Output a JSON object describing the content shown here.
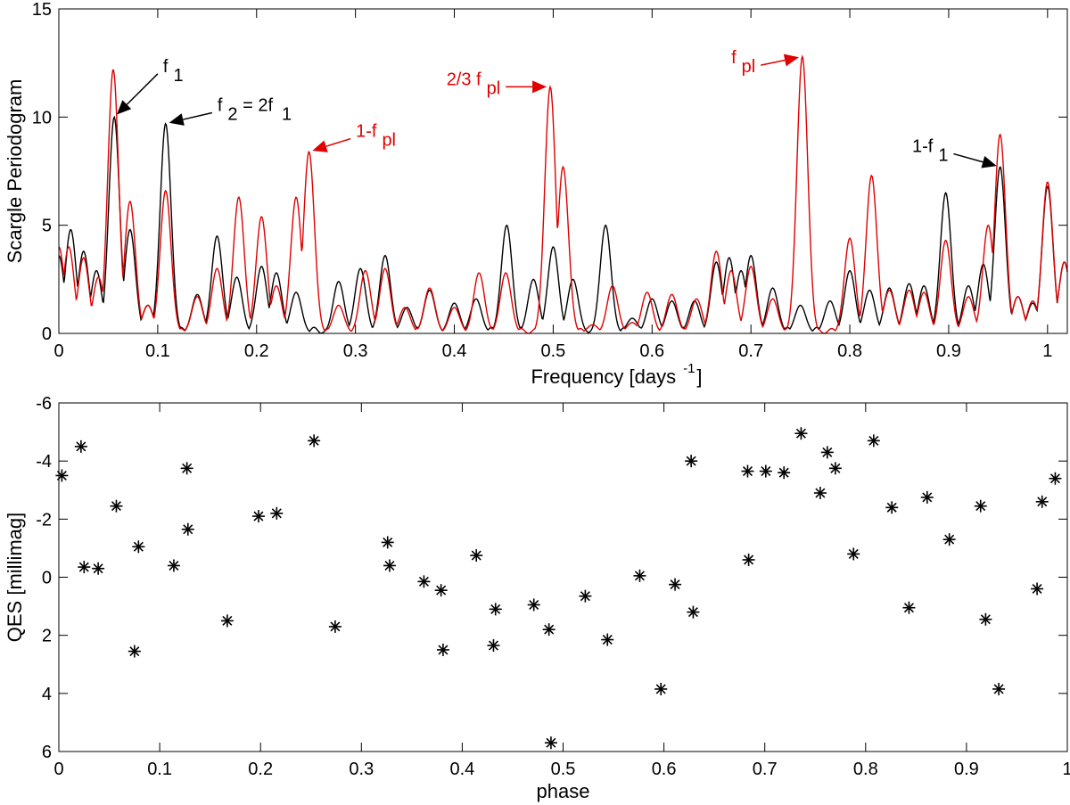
{
  "chart_data": [
    {
      "type": "line",
      "ylabel": "Scargle Periodogram",
      "xlabel": "Frequency [days",
      "xlabel_sup": "-1",
      "xlim": [
        0,
        1.02
      ],
      "ylim": [
        0,
        15
      ],
      "xticks": [
        "0",
        "0.1",
        "0.2",
        "0.3",
        "0.4",
        "0.5",
        "0.6",
        "0.7",
        "0.8",
        "0.9",
        "1"
      ],
      "yticks": [
        "0",
        "5",
        "10",
        "15"
      ],
      "colors": {
        "black": "#000000",
        "red": "#e00000"
      },
      "series": [
        {
          "name": "black",
          "color": "#000000",
          "baseline": 1.5,
          "peaks": [
            [
              0.0,
              3.6
            ],
            [
              0.012,
              4.8
            ],
            [
              0.025,
              3.8
            ],
            [
              0.038,
              2.9
            ],
            [
              0.056,
              10.0
            ],
            [
              0.072,
              4.8
            ],
            [
              0.09,
              1.3
            ],
            [
              0.108,
              9.7
            ],
            [
              0.14,
              1.8
            ],
            [
              0.16,
              4.5
            ],
            [
              0.18,
              2.6
            ],
            [
              0.205,
              3.1
            ],
            [
              0.22,
              2.8
            ],
            [
              0.24,
              1.9
            ],
            [
              0.283,
              2.4
            ],
            [
              0.305,
              3.0
            ],
            [
              0.33,
              3.6
            ],
            [
              0.352,
              1.2
            ],
            [
              0.375,
              2.0
            ],
            [
              0.4,
              1.4
            ],
            [
              0.422,
              1.6
            ],
            [
              0.453,
              5.0
            ],
            [
              0.48,
              2.5
            ],
            [
              0.5,
              4.0
            ],
            [
              0.52,
              2.5
            ],
            [
              0.553,
              5.0
            ],
            [
              0.58,
              0.7
            ],
            [
              0.6,
              1.6
            ],
            [
              0.62,
              1.5
            ],
            [
              0.643,
              1.5
            ],
            [
              0.665,
              3.3
            ],
            [
              0.678,
              3.5
            ],
            [
              0.69,
              2.9
            ],
            [
              0.7,
              3.6
            ],
            [
              0.722,
              2.1
            ],
            [
              0.75,
              1.3
            ],
            [
              0.78,
              1.5
            ],
            [
              0.8,
              2.9
            ],
            [
              0.82,
              2.0
            ],
            [
              0.84,
              2.1
            ],
            [
              0.86,
              2.3
            ],
            [
              0.875,
              2.2
            ],
            [
              0.897,
              6.5
            ],
            [
              0.92,
              2.2
            ],
            [
              0.935,
              3.2
            ],
            [
              0.952,
              7.7
            ],
            [
              0.97,
              1.7
            ],
            [
              0.985,
              1.4
            ],
            [
              1.0,
              6.8
            ],
            [
              1.017,
              3.3
            ]
          ]
        },
        {
          "name": "red",
          "color": "#e00000",
          "baseline": 0.8,
          "peaks": [
            [
              0.0,
              4.0
            ],
            [
              0.01,
              4.0
            ],
            [
              0.025,
              3.5
            ],
            [
              0.04,
              2.6
            ],
            [
              0.055,
              12.2
            ],
            [
              0.072,
              6.1
            ],
            [
              0.09,
              1.3
            ],
            [
              0.108,
              6.6
            ],
            [
              0.14,
              1.7
            ],
            [
              0.16,
              3.0
            ],
            [
              0.182,
              6.3
            ],
            [
              0.205,
              5.4
            ],
            [
              0.22,
              2.2
            ],
            [
              0.24,
              6.3
            ],
            [
              0.253,
              8.4
            ],
            [
              0.283,
              1.3
            ],
            [
              0.31,
              2.9
            ],
            [
              0.33,
              3.0
            ],
            [
              0.35,
              1.2
            ],
            [
              0.375,
              2.1
            ],
            [
              0.4,
              1.2
            ],
            [
              0.425,
              2.8
            ],
            [
              0.452,
              2.8
            ],
            [
              0.497,
              11.4
            ],
            [
              0.51,
              7.7
            ],
            [
              0.54,
              0.4
            ],
            [
              0.56,
              2.2
            ],
            [
              0.58,
              0.5
            ],
            [
              0.595,
              1.9
            ],
            [
              0.62,
              1.8
            ],
            [
              0.645,
              1.6
            ],
            [
              0.665,
              3.8
            ],
            [
              0.68,
              2.9
            ],
            [
              0.7,
              3.1
            ],
            [
              0.722,
              1.6
            ],
            [
              0.752,
              12.8
            ],
            [
              0.8,
              4.4
            ],
            [
              0.822,
              7.3
            ],
            [
              0.84,
              2.0
            ],
            [
              0.86,
              2.0
            ],
            [
              0.875,
              1.9
            ],
            [
              0.897,
              4.3
            ],
            [
              0.92,
              1.7
            ],
            [
              0.94,
              5.0
            ],
            [
              0.952,
              9.2
            ],
            [
              0.97,
              1.7
            ],
            [
              0.985,
              1.5
            ],
            [
              1.0,
              7.0
            ],
            [
              1.017,
              3.3
            ]
          ]
        }
      ],
      "annotations": [
        {
          "label": "f",
          "sub": "1",
          "color": "#000000",
          "x": 0.056,
          "y": 10.0,
          "tx": 0.1,
          "ty": 12.0
        },
        {
          "label": "f",
          "sub": "2",
          "rest": " = 2f",
          "sub2": "1",
          "color": "#000000",
          "x": 0.108,
          "y": 9.7,
          "tx": 0.155,
          "ty": 10.2
        },
        {
          "label": "1-f",
          "sub": "pl",
          "color": "#e00000",
          "x": 0.253,
          "y": 8.4,
          "tx": 0.295,
          "ty": 9.0
        },
        {
          "label": "2/3 f",
          "sub": "pl",
          "color": "#e00000",
          "x": 0.497,
          "y": 11.4,
          "tx": 0.452,
          "ty": 11.4
        },
        {
          "label": "f",
          "sub": "pl",
          "color": "#e00000",
          "x": 0.752,
          "y": 12.8,
          "tx": 0.71,
          "ty": 12.4
        },
        {
          "label": "1-f",
          "sub": "1",
          "color": "#000000",
          "x": 0.952,
          "y": 7.7,
          "tx": 0.905,
          "ty": 8.3
        }
      ]
    },
    {
      "type": "scatter",
      "ylabel": "QES [millimag]",
      "xlabel": "phase",
      "xlim": [
        0,
        1
      ],
      "ylim": [
        6,
        -6
      ],
      "xticks": [
        "0",
        "0.1",
        "0.2",
        "0.3",
        "0.4",
        "0.5",
        "0.6",
        "0.7",
        "0.8",
        "0.9",
        "1"
      ],
      "yticks": [
        "-6",
        "-4",
        "-2",
        "0",
        "2",
        "4",
        "6"
      ],
      "marker": "*",
      "points": [
        [
          0.003,
          -3.5
        ],
        [
          0.022,
          -4.5
        ],
        [
          0.025,
          -0.35
        ],
        [
          0.039,
          -0.3
        ],
        [
          0.057,
          -2.45
        ],
        [
          0.075,
          2.55
        ],
        [
          0.079,
          -1.05
        ],
        [
          0.114,
          -0.4
        ],
        [
          0.127,
          -3.75
        ],
        [
          0.128,
          -1.65
        ],
        [
          0.167,
          1.5
        ],
        [
          0.198,
          -2.1
        ],
        [
          0.216,
          -2.2
        ],
        [
          0.253,
          -4.7
        ],
        [
          0.274,
          1.7
        ],
        [
          0.326,
          -1.2
        ],
        [
          0.328,
          -0.4
        ],
        [
          0.362,
          0.15
        ],
        [
          0.379,
          0.45
        ],
        [
          0.381,
          2.5
        ],
        [
          0.414,
          -0.75
        ],
        [
          0.431,
          2.35
        ],
        [
          0.433,
          1.1
        ],
        [
          0.471,
          0.95
        ],
        [
          0.486,
          1.8
        ],
        [
          0.488,
          5.7
        ],
        [
          0.522,
          0.65
        ],
        [
          0.544,
          2.15
        ],
        [
          0.576,
          -0.05
        ],
        [
          0.597,
          3.85
        ],
        [
          0.611,
          0.25
        ],
        [
          0.627,
          -4.0
        ],
        [
          0.629,
          1.2
        ],
        [
          0.683,
          -3.65
        ],
        [
          0.684,
          -0.6
        ],
        [
          0.701,
          -3.65
        ],
        [
          0.719,
          -3.6
        ],
        [
          0.736,
          -4.95
        ],
        [
          0.755,
          -2.9
        ],
        [
          0.762,
          -4.3
        ],
        [
          0.77,
          -3.75
        ],
        [
          0.788,
          -0.8
        ],
        [
          0.808,
          -4.7
        ],
        [
          0.826,
          -2.4
        ],
        [
          0.843,
          1.05
        ],
        [
          0.861,
          -2.75
        ],
        [
          0.883,
          -1.3
        ],
        [
          0.914,
          -2.45
        ],
        [
          0.919,
          1.45
        ],
        [
          0.932,
          3.85
        ],
        [
          0.97,
          0.4
        ],
        [
          0.975,
          -2.6
        ],
        [
          0.988,
          -3.4
        ]
      ]
    }
  ]
}
